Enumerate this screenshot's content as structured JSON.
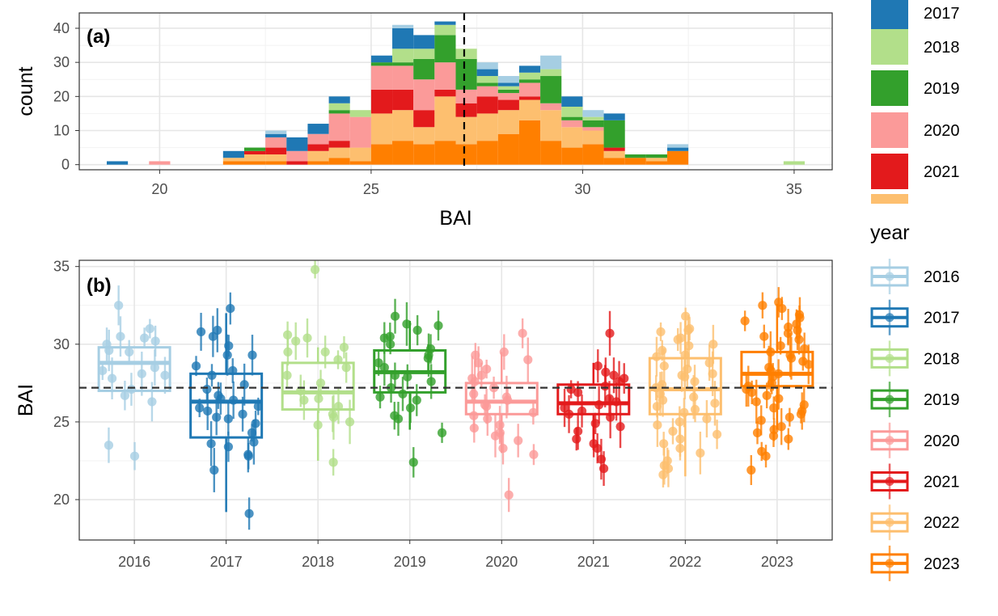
{
  "colors": {
    "2016": "#A6CEE3",
    "2017": "#1F78B4",
    "2018": "#B2DF8A",
    "2019": "#33A02C",
    "2020": "#FB9A99",
    "2021": "#E31A1C",
    "2022": "#FDBF6F",
    "2023": "#FF7F00"
  },
  "legend": {
    "title": "year",
    "items": [
      "2016",
      "2017",
      "2018",
      "2019",
      "2020",
      "2021",
      "2022",
      "2023"
    ],
    "top_items": [
      "2017",
      "2018",
      "2019",
      "2020",
      "2021"
    ]
  },
  "chart_data": [
    {
      "type": "bar",
      "subtype": "stacked-histogram",
      "panel_label": "(a)",
      "xlabel": "BAI",
      "ylabel": "count",
      "xlim": [
        18.1,
        35.9
      ],
      "ylim": [
        -1.5,
        44.5
      ],
      "x_ticks": [
        20,
        25,
        30,
        35
      ],
      "y_ticks": [
        0,
        10,
        20,
        30,
        40
      ],
      "bin_width": 0.5,
      "grid": true,
      "vline": 27.2,
      "stack_order_bottom_to_top": [
        "2023",
        "2022",
        "2021",
        "2020",
        "2019",
        "2018",
        "2017",
        "2016"
      ],
      "bins": [
        {
          "x": 19.0,
          "counts": {
            "2017": 1
          }
        },
        {
          "x": 20.0,
          "counts": {
            "2020": 1
          }
        },
        {
          "x": 21.75,
          "counts": {
            "2023": 1,
            "2022": 1,
            "2017": 2
          }
        },
        {
          "x": 22.25,
          "counts": {
            "2023": 1,
            "2022": 2,
            "2021": 1,
            "2019": 1
          }
        },
        {
          "x": 22.75,
          "counts": {
            "2023": 1,
            "2022": 2,
            "2021": 2,
            "2020": 3,
            "2017": 1,
            "2016": 1
          }
        },
        {
          "x": 23.25,
          "counts": {
            "2021": 1,
            "2020": 3,
            "2017": 4
          }
        },
        {
          "x": 23.75,
          "counts": {
            "2023": 1,
            "2022": 3,
            "2021": 2,
            "2020": 3,
            "2017": 3
          }
        },
        {
          "x": 24.25,
          "counts": {
            "2023": 2,
            "2022": 3,
            "2021": 2,
            "2020": 8,
            "2019": 1,
            "2018": 2,
            "2017": 2
          }
        },
        {
          "x": 24.75,
          "counts": {
            "2023": 1,
            "2022": 4,
            "2020": 9,
            "2018": 2
          }
        },
        {
          "x": 25.25,
          "counts": {
            "2023": 6,
            "2022": 9,
            "2021": 7,
            "2020": 7,
            "2019": 1,
            "2017": 2
          }
        },
        {
          "x": 25.75,
          "counts": {
            "2023": 7,
            "2022": 9,
            "2021": 6,
            "2020": 7,
            "2019": 1,
            "2018": 4,
            "2017": 6,
            "2016": 1
          }
        },
        {
          "x": 26.25,
          "counts": {
            "2023": 6,
            "2022": 5,
            "2021": 5,
            "2020": 9,
            "2019": 6,
            "2018": 3,
            "2017": 4
          }
        },
        {
          "x": 26.75,
          "counts": {
            "2023": 7,
            "2022": 13,
            "2021": 2,
            "2020": 8,
            "2019": 8,
            "2018": 3,
            "2017": 1
          }
        },
        {
          "x": 27.25,
          "counts": {
            "2023": 6,
            "2022": 8,
            "2021": 4,
            "2020": 4,
            "2019": 9,
            "2018": 3
          }
        },
        {
          "x": 27.75,
          "counts": {
            "2023": 7,
            "2022": 8,
            "2021": 5,
            "2020": 3,
            "2019": 1,
            "2018": 2,
            "2017": 2,
            "2016": 2
          }
        },
        {
          "x": 28.25,
          "counts": {
            "2023": 9,
            "2022": 7,
            "2021": 3,
            "2020": 2,
            "2019": 1,
            "2018": 1,
            "2017": 1,
            "2016": 2
          }
        },
        {
          "x": 28.75,
          "counts": {
            "2023": 13,
            "2022": 6,
            "2021": 1,
            "2020": 4,
            "2019": 1,
            "2018": 2,
            "2017": 2
          }
        },
        {
          "x": 29.25,
          "counts": {
            "2023": 7,
            "2022": 9,
            "2020": 2,
            "2019": 8,
            "2018": 2,
            "2016": 4
          }
        },
        {
          "x": 29.75,
          "counts": {
            "2023": 5,
            "2022": 6,
            "2020": 2,
            "2019": 1,
            "2018": 3,
            "2017": 3
          }
        },
        {
          "x": 30.25,
          "counts": {
            "2023": 6,
            "2022": 4,
            "2020": 1,
            "2019": 2,
            "2018": 1,
            "2016": 2
          }
        },
        {
          "x": 30.75,
          "counts": {
            "2023": 2,
            "2022": 2,
            "2021": 1,
            "2019": 8,
            "2017": 2
          }
        },
        {
          "x": 31.25,
          "counts": {
            "2023": 2,
            "2019": 1
          }
        },
        {
          "x": 31.75,
          "counts": {
            "2023": 1,
            "2022": 1,
            "2019": 1
          }
        },
        {
          "x": 32.25,
          "counts": {
            "2023": 4,
            "2017": 1,
            "2016": 1
          }
        },
        {
          "x": 35.0,
          "counts": {
            "2018": 1
          }
        }
      ]
    },
    {
      "type": "box",
      "subtype": "box-with-jittered-points-and-error-bars",
      "panel_label": "(b)",
      "xlabel": "",
      "ylabel": "BAI",
      "categories": [
        "2016",
        "2017",
        "2018",
        "2019",
        "2020",
        "2021",
        "2022",
        "2023"
      ],
      "ylim": [
        17.4,
        35.4
      ],
      "y_ticks": [
        20,
        25,
        30,
        35
      ],
      "grid": true,
      "hline": 27.2,
      "boxes": [
        {
          "year": "2016",
          "q1": 27.0,
          "median": 28.8,
          "q3": 29.8,
          "whisker_low": 27.0,
          "whisker_high": 29.8
        },
        {
          "year": "2017",
          "q1": 24.0,
          "median": 26.3,
          "q3": 28.1,
          "whisker_low": 19.2,
          "whisker_high": 32.0
        },
        {
          "year": "2018",
          "q1": 25.8,
          "median": 26.9,
          "q3": 28.8,
          "whisker_low": 22.5,
          "whisker_high": 29.8
        },
        {
          "year": "2019",
          "q1": 26.9,
          "median": 28.2,
          "q3": 29.6,
          "whisker_low": 24.5,
          "whisker_high": 31.5
        },
        {
          "year": "2020",
          "q1": 25.5,
          "median": 26.3,
          "q3": 27.5,
          "whisker_low": 23.0,
          "whisker_high": 29.5
        },
        {
          "year": "2021",
          "q1": 25.5,
          "median": 26.2,
          "q3": 27.4,
          "whisker_low": 23.2,
          "whisker_high": 28.8
        },
        {
          "year": "2022",
          "q1": 25.5,
          "median": 27.1,
          "q3": 29.1,
          "whisker_low": 21.5,
          "whisker_high": 31.5
        },
        {
          "year": "2023",
          "q1": 27.3,
          "median": 28.1,
          "q3": 29.5,
          "whisker_low": 24.5,
          "whisker_high": 32.6
        }
      ],
      "points": {
        "2016": [
          31.0,
          30.0,
          29.5,
          30.2,
          27.8,
          28.5,
          29.6,
          28.0,
          30.5,
          26.3,
          28.3,
          32.5,
          30.4,
          22.8,
          23.5,
          26.7,
          28.1,
          27.1
        ],
        "2017": [
          32.3,
          30.9,
          30.5,
          29.9,
          30.8,
          28.6,
          29.3,
          27.1,
          26.5,
          26.0,
          25.7,
          25.2,
          24.9,
          24.3,
          23.6,
          23.4,
          22.9,
          21.9,
          19.1,
          28.0,
          27.4,
          26.7,
          25.5,
          23.7,
          29.3,
          26.4,
          25.3,
          22.8,
          28.3,
          25.9
        ],
        "2018": [
          34.8,
          30.4,
          29.8,
          29.5,
          29.0,
          28.0,
          27.5,
          27.0,
          26.5,
          26.0,
          25.5,
          25.0,
          24.8,
          22.4,
          30.2,
          29.5,
          28.5,
          26.4,
          25.3,
          30.6
        ],
        "2019": [
          31.8,
          31.2,
          30.9,
          30.4,
          30.0,
          29.7,
          29.3,
          28.8,
          28.5,
          28.0,
          27.6,
          27.2,
          26.8,
          26.4,
          25.9,
          25.2,
          24.3,
          22.4,
          30.5,
          29.1,
          27.9,
          26.6,
          25.4,
          31.3
        ],
        "2020": [
          30.7,
          29.5,
          29.0,
          28.4,
          28.0,
          27.6,
          27.2,
          26.8,
          26.4,
          26.0,
          25.6,
          25.2,
          24.8,
          24.3,
          23.8,
          23.3,
          22.9,
          20.3,
          29.3,
          27.8,
          26.6,
          25.4,
          24.1,
          28.8,
          26.1,
          24.6
        ],
        "2021": [
          30.7,
          28.6,
          28.2,
          27.8,
          27.3,
          26.9,
          26.5,
          26.1,
          25.7,
          25.3,
          24.9,
          24.4,
          23.9,
          23.3,
          22.6,
          22.0,
          28.0,
          27.1,
          26.3,
          25.5,
          24.7,
          23.6,
          27.6,
          25.9
        ],
        "2022": [
          31.8,
          31.0,
          30.8,
          30.4,
          30.0,
          29.6,
          29.2,
          28.8,
          28.4,
          28.0,
          27.6,
          27.2,
          26.8,
          26.4,
          26.0,
          25.6,
          25.2,
          24.8,
          24.4,
          23.9,
          23.3,
          22.5,
          22.2,
          21.6,
          22.0,
          30.3,
          29.3,
          28.6,
          27.4,
          26.2,
          25.0,
          23.6,
          30.9,
          28.1,
          26.6,
          24.2,
          29.9,
          27.9,
          25.8,
          23.0
        ],
        "2023": [
          32.7,
          32.3,
          31.9,
          31.5,
          31.1,
          30.7,
          30.3,
          29.9,
          29.5,
          29.1,
          28.7,
          28.3,
          27.9,
          27.5,
          27.1,
          26.7,
          26.3,
          25.9,
          25.5,
          25.1,
          24.7,
          24.3,
          23.9,
          23.1,
          22.8,
          21.9,
          31.7,
          30.5,
          29.3,
          28.1,
          26.9,
          25.7,
          24.5,
          30.9,
          28.9,
          26.5,
          32.5,
          29.7,
          27.3,
          25.3,
          31.3,
          28.5,
          26.1,
          24.1
        ]
      }
    }
  ]
}
